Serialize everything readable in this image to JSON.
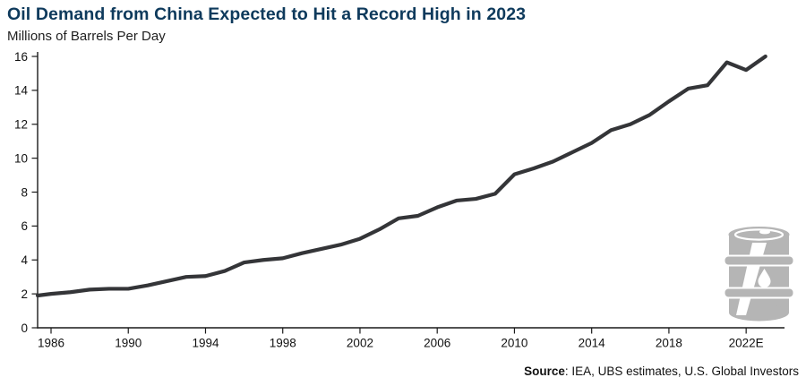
{
  "header": {
    "title": "Oil Demand from China Expected to Hit a Record High in 2023",
    "subtitle": "Millions of Barrels Per Day"
  },
  "footer": {
    "source_label": "Source",
    "source_text": ": IEA, UBS estimates, U.S. Global Investors"
  },
  "colors": {
    "title": "#0e3a5c",
    "line": "#343538",
    "barrel": "#b5b5b5",
    "axis": "#1a1a1a"
  },
  "icons": {
    "oil_barrel": "oil-barrel-icon"
  },
  "chart_data": {
    "type": "line",
    "title": "Oil Demand from China Expected to Hit a Record High in 2023",
    "ylabel": "Millions of Barrels Per Day",
    "xlabel": "",
    "grid": false,
    "legend": "none",
    "ylim": [
      0,
      16
    ],
    "y_ticks": [
      0,
      2,
      4,
      6,
      8,
      10,
      12,
      14,
      16
    ],
    "x_tick_years": [
      1986,
      1990,
      1994,
      1998,
      2002,
      2006,
      2010,
      2014,
      2018,
      2022
    ],
    "x_tick_labels": [
      "1986",
      "1990",
      "1994",
      "1998",
      "2002",
      "2006",
      "2010",
      "2014",
      "2018",
      "2022E"
    ],
    "x": [
      1985,
      1986,
      1987,
      1988,
      1989,
      1990,
      1991,
      1992,
      1993,
      1994,
      1995,
      1996,
      1997,
      1998,
      1999,
      2000,
      2001,
      2002,
      2003,
      2004,
      2005,
      2006,
      2007,
      2008,
      2009,
      2010,
      2011,
      2012,
      2013,
      2014,
      2015,
      2016,
      2017,
      2018,
      2019,
      2020,
      2021,
      2022,
      2023
    ],
    "values": [
      1.9,
      2.0,
      2.1,
      2.25,
      2.3,
      2.3,
      2.5,
      2.75,
      3.0,
      3.05,
      3.35,
      3.85,
      4.0,
      4.1,
      4.4,
      4.65,
      4.9,
      5.25,
      5.8,
      6.45,
      6.6,
      7.1,
      7.5,
      7.6,
      7.9,
      9.05,
      9.4,
      9.8,
      10.35,
      10.9,
      11.65,
      12.0,
      12.55,
      13.35,
      14.1,
      14.3,
      15.65,
      15.2,
      16.0
    ]
  }
}
